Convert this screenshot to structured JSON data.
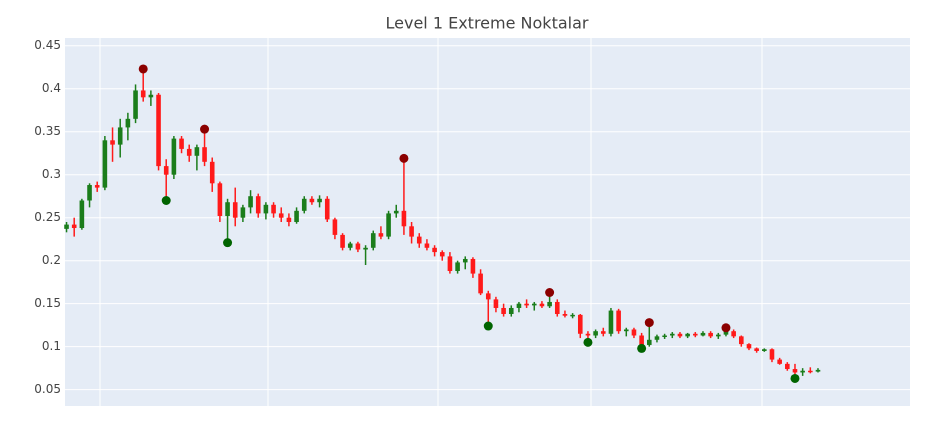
{
  "chart_data": {
    "type": "candlestick",
    "title": "Level 1 Extreme Noktalar",
    "increasing_color": "#1b7d1b",
    "decreasing_color": "#ff1a1a",
    "open": [
      0.237,
      0.242,
      0.238,
      0.27,
      0.288,
      0.285,
      0.34,
      0.335,
      0.355,
      0.365,
      0.398,
      0.39,
      0.393,
      0.31,
      0.3,
      0.342,
      0.33,
      0.322,
      0.332,
      0.315,
      0.29,
      0.252,
      0.268,
      0.25,
      0.262,
      0.275,
      0.255,
      0.265,
      0.255,
      0.25,
      0.245,
      0.258,
      0.272,
      0.268,
      0.272,
      0.248,
      0.23,
      0.215,
      0.22,
      0.213,
      0.215,
      0.232,
      0.228,
      0.255,
      0.258,
      0.24,
      0.228,
      0.22,
      0.215,
      0.21,
      0.205,
      0.188,
      0.198,
      0.202,
      0.185,
      0.162,
      0.155,
      0.145,
      0.138,
      0.145,
      0.15,
      0.148,
      0.15,
      0.147,
      0.152,
      0.138,
      0.136,
      0.137,
      0.115,
      0.113,
      0.118,
      0.115,
      0.142,
      0.118,
      0.12,
      0.113,
      0.102,
      0.108,
      0.112,
      0.113,
      0.115,
      0.112,
      0.115,
      0.113,
      0.116,
      0.112,
      0.114,
      0.118,
      0.112,
      0.103,
      0.098,
      0.095,
      0.097,
      0.085,
      0.08,
      0.074,
      0.07,
      0.072,
      0.071
    ],
    "high": [
      0.245,
      0.25,
      0.272,
      0.29,
      0.292,
      0.345,
      0.355,
      0.365,
      0.372,
      0.405,
      0.423,
      0.398,
      0.395,
      0.318,
      0.345,
      0.345,
      0.335,
      0.335,
      0.353,
      0.32,
      0.292,
      0.272,
      0.285,
      0.265,
      0.282,
      0.278,
      0.268,
      0.268,
      0.262,
      0.255,
      0.262,
      0.275,
      0.275,
      0.276,
      0.275,
      0.25,
      0.232,
      0.222,
      0.222,
      0.218,
      0.235,
      0.24,
      0.258,
      0.265,
      0.319,
      0.245,
      0.232,
      0.225,
      0.218,
      0.212,
      0.21,
      0.2,
      0.205,
      0.204,
      0.19,
      0.165,
      0.158,
      0.15,
      0.148,
      0.152,
      0.155,
      0.152,
      0.153,
      0.163,
      0.155,
      0.142,
      0.139,
      0.138,
      0.118,
      0.12,
      0.122,
      0.145,
      0.144,
      0.122,
      0.122,
      0.116,
      0.128,
      0.114,
      0.115,
      0.117,
      0.117,
      0.116,
      0.117,
      0.118,
      0.118,
      0.116,
      0.122,
      0.12,
      0.113,
      0.104,
      0.099,
      0.098,
      0.098,
      0.087,
      0.082,
      0.08,
      0.075,
      0.076,
      0.075
    ],
    "low": [
      0.233,
      0.228,
      0.236,
      0.262,
      0.28,
      0.282,
      0.315,
      0.32,
      0.34,
      0.36,
      0.385,
      0.38,
      0.305,
      0.27,
      0.295,
      0.325,
      0.315,
      0.305,
      0.31,
      0.28,
      0.245,
      0.221,
      0.24,
      0.245,
      0.255,
      0.25,
      0.248,
      0.25,
      0.245,
      0.24,
      0.243,
      0.255,
      0.265,
      0.262,
      0.245,
      0.225,
      0.212,
      0.212,
      0.21,
      0.195,
      0.212,
      0.225,
      0.225,
      0.25,
      0.23,
      0.22,
      0.215,
      0.212,
      0.205,
      0.2,
      0.185,
      0.185,
      0.19,
      0.18,
      0.16,
      0.124,
      0.14,
      0.135,
      0.135,
      0.14,
      0.145,
      0.142,
      0.145,
      0.145,
      0.135,
      0.134,
      0.133,
      0.11,
      0.105,
      0.11,
      0.112,
      0.112,
      0.115,
      0.112,
      0.11,
      0.098,
      0.1,
      0.105,
      0.109,
      0.11,
      0.11,
      0.11,
      0.111,
      0.112,
      0.11,
      0.109,
      0.112,
      0.11,
      0.1,
      0.096,
      0.093,
      0.094,
      0.082,
      0.079,
      0.072,
      0.063,
      0.066,
      0.069,
      0.07
    ],
    "close": [
      0.242,
      0.238,
      0.27,
      0.288,
      0.285,
      0.34,
      0.335,
      0.355,
      0.365,
      0.398,
      0.39,
      0.393,
      0.31,
      0.3,
      0.342,
      0.33,
      0.322,
      0.332,
      0.315,
      0.29,
      0.252,
      0.268,
      0.25,
      0.262,
      0.275,
      0.255,
      0.265,
      0.255,
      0.25,
      0.245,
      0.258,
      0.272,
      0.268,
      0.272,
      0.248,
      0.23,
      0.215,
      0.22,
      0.213,
      0.215,
      0.232,
      0.228,
      0.255,
      0.258,
      0.24,
      0.228,
      0.22,
      0.215,
      0.21,
      0.205,
      0.188,
      0.198,
      0.202,
      0.185,
      0.162,
      0.155,
      0.145,
      0.138,
      0.145,
      0.15,
      0.148,
      0.15,
      0.147,
      0.152,
      0.138,
      0.136,
      0.137,
      0.115,
      0.113,
      0.118,
      0.115,
      0.142,
      0.118,
      0.12,
      0.113,
      0.102,
      0.108,
      0.112,
      0.113,
      0.115,
      0.112,
      0.115,
      0.113,
      0.116,
      0.112,
      0.114,
      0.118,
      0.112,
      0.103,
      0.098,
      0.095,
      0.097,
      0.085,
      0.08,
      0.074,
      0.07,
      0.072,
      0.071,
      0.073
    ],
    "markers": [
      {
        "color": "#8b0000",
        "x": [
          10,
          18,
          44,
          63,
          76,
          86
        ],
        "values": [
          0.423,
          0.353,
          0.319,
          0.163,
          0.128,
          0.122
        ]
      },
      {
        "color": "#006400",
        "x": [
          13,
          21,
          55,
          68,
          75,
          95
        ],
        "values": [
          0.27,
          0.221,
          0.124,
          0.105,
          0.098,
          0.063
        ]
      }
    ],
    "xlim": [
      -0.2,
      110
    ],
    "ylim": [
      0.031,
      0.459
    ],
    "yticks": [
      0.05,
      0.1,
      0.15,
      0.2,
      0.25,
      0.3,
      0.35,
      0.4,
      0.45
    ],
    "grid": true
  }
}
